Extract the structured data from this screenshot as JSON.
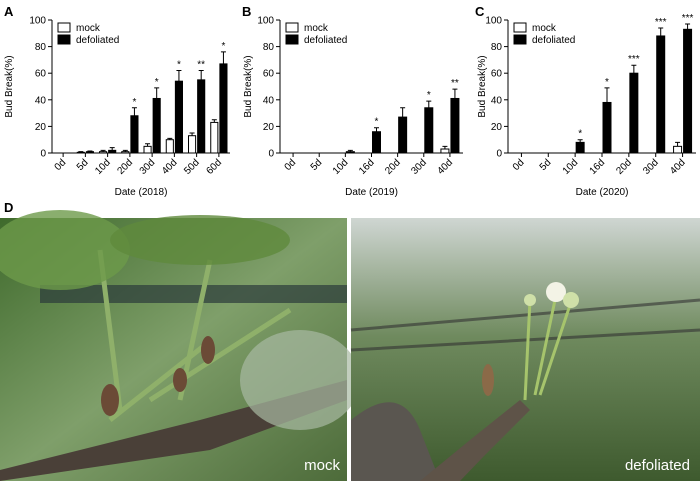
{
  "panel_labels": [
    "A",
    "B",
    "C",
    "D"
  ],
  "photos": [
    {
      "label": "mock"
    },
    {
      "label": "defoliated"
    }
  ],
  "chart_data": [
    {
      "type": "bar",
      "xlabel": "Date (2018)",
      "ylabel": "Bud Break(%)",
      "categories": [
        "0d",
        "5d",
        "10d",
        "20d",
        "30d",
        "40d",
        "50d",
        "60d"
      ],
      "series": [
        {
          "name": "mock",
          "color": "#ffffff",
          "values": [
            0,
            0.5,
            1,
            1,
            5,
            10,
            13,
            23
          ],
          "errors": [
            0,
            0.5,
            1,
            1,
            2,
            1,
            2,
            2
          ]
        },
        {
          "name": "defoliated",
          "color": "#000000",
          "values": [
            0,
            1,
            2,
            28,
            41,
            54,
            55,
            67
          ],
          "errors": [
            0,
            0.5,
            2,
            6,
            8,
            8,
            7,
            9
          ]
        }
      ],
      "annotations": [
        null,
        null,
        null,
        "*",
        "*",
        "*",
        "**",
        "*"
      ],
      "ylim": [
        0,
        100
      ],
      "yticks": [
        0,
        20,
        40,
        60,
        80,
        100
      ]
    },
    {
      "type": "bar",
      "xlabel": "Date (2019)",
      "ylabel": "Bud Break(%)",
      "categories": [
        "0d",
        "5d",
        "10d",
        "16d",
        "20d",
        "30d",
        "40d"
      ],
      "series": [
        {
          "name": "mock",
          "color": "#ffffff",
          "values": [
            0,
            0,
            0,
            0,
            0,
            0,
            3
          ],
          "errors": [
            0,
            0,
            0,
            0,
            0,
            0,
            2
          ]
        },
        {
          "name": "defoliated",
          "color": "#000000",
          "values": [
            0,
            0,
            1,
            16,
            27,
            34,
            41
          ],
          "errors": [
            0,
            0,
            1,
            3,
            7,
            5,
            7
          ]
        }
      ],
      "annotations": [
        null,
        null,
        null,
        "*",
        null,
        "*",
        "**"
      ],
      "ylim": [
        0,
        100
      ],
      "yticks": [
        0,
        20,
        40,
        60,
        80,
        100
      ]
    },
    {
      "type": "bar",
      "xlabel": "Date (2020)",
      "ylabel": "Bud Break(%)",
      "categories": [
        "0d",
        "5d",
        "10d",
        "16d",
        "20d",
        "30d",
        "40d"
      ],
      "series": [
        {
          "name": "mock",
          "color": "#ffffff",
          "values": [
            0,
            0,
            0,
            0,
            0,
            0,
            5
          ],
          "errors": [
            0,
            0,
            0,
            0,
            0,
            0,
            3
          ]
        },
        {
          "name": "defoliated",
          "color": "#000000",
          "values": [
            0,
            0,
            8,
            38,
            60,
            88,
            93
          ],
          "errors": [
            0,
            0,
            2,
            11,
            6,
            6,
            4
          ]
        }
      ],
      "annotations": [
        null,
        null,
        "*",
        "*",
        "***",
        "***",
        "***"
      ],
      "ylim": [
        0,
        100
      ],
      "yticks": [
        0,
        20,
        40,
        60,
        80,
        100
      ]
    }
  ]
}
